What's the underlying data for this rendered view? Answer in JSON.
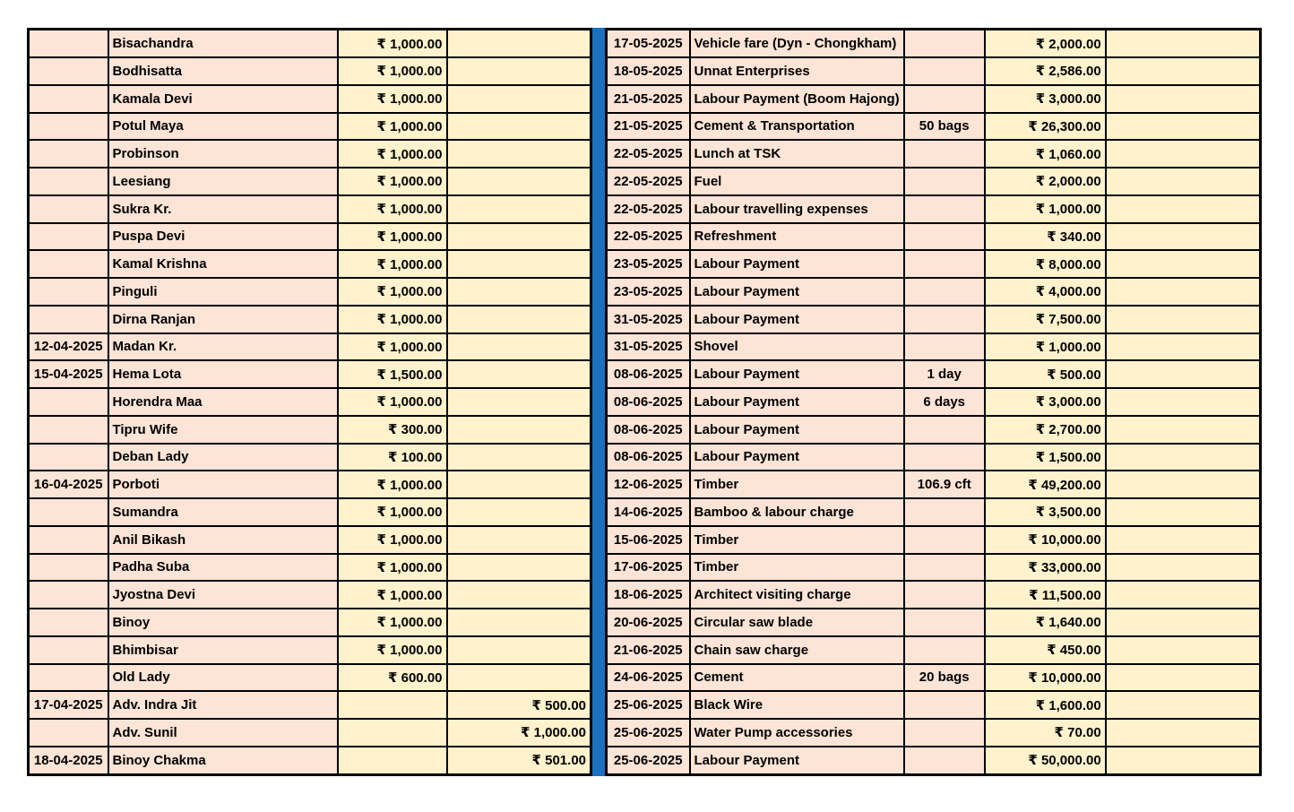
{
  "colors": {
    "row_pink": "#FCE4D6",
    "row_yellow": "#FFF2CC",
    "divider_blue": "#1B71BE",
    "grid_line": "#000000"
  },
  "currency_symbol": "₹",
  "left_table": {
    "columns": [
      "date",
      "name",
      "amount",
      "amount2"
    ],
    "rows": [
      {
        "date": "",
        "name": "Bisachandra",
        "amount": "₹ 1,000.00",
        "amount2": ""
      },
      {
        "date": "",
        "name": "Bodhisatta",
        "amount": "₹ 1,000.00",
        "amount2": ""
      },
      {
        "date": "",
        "name": "Kamala Devi",
        "amount": "₹ 1,000.00",
        "amount2": ""
      },
      {
        "date": "",
        "name": "Potul Maya",
        "amount": "₹ 1,000.00",
        "amount2": ""
      },
      {
        "date": "",
        "name": "Probinson",
        "amount": "₹ 1,000.00",
        "amount2": ""
      },
      {
        "date": "",
        "name": "Leesiang",
        "amount": "₹ 1,000.00",
        "amount2": ""
      },
      {
        "date": "",
        "name": "Sukra Kr.",
        "amount": "₹ 1,000.00",
        "amount2": ""
      },
      {
        "date": "",
        "name": "Puspa Devi",
        "amount": "₹ 1,000.00",
        "amount2": ""
      },
      {
        "date": "",
        "name": "Kamal Krishna",
        "amount": "₹ 1,000.00",
        "amount2": ""
      },
      {
        "date": "",
        "name": "Pinguli",
        "amount": "₹ 1,000.00",
        "amount2": ""
      },
      {
        "date": "",
        "name": "Dirna Ranjan",
        "amount": "₹ 1,000.00",
        "amount2": ""
      },
      {
        "date": "12-04-2025",
        "name": "Madan Kr.",
        "amount": "₹ 1,000.00",
        "amount2": ""
      },
      {
        "date": "15-04-2025",
        "name": "Hema Lota",
        "amount": "₹ 1,500.00",
        "amount2": ""
      },
      {
        "date": "",
        "name": "Horendra Maa",
        "amount": "₹ 1,000.00",
        "amount2": ""
      },
      {
        "date": "",
        "name": "Tipru Wife",
        "amount": "₹ 300.00",
        "amount2": ""
      },
      {
        "date": "",
        "name": "Deban Lady",
        "amount": "₹ 100.00",
        "amount2": ""
      },
      {
        "date": "16-04-2025",
        "name": "Porboti",
        "amount": "₹ 1,000.00",
        "amount2": ""
      },
      {
        "date": "",
        "name": "Sumandra",
        "amount": "₹ 1,000.00",
        "amount2": ""
      },
      {
        "date": "",
        "name": "Anil Bikash",
        "amount": "₹ 1,000.00",
        "amount2": ""
      },
      {
        "date": "",
        "name": "Padha Suba",
        "amount": "₹ 1,000.00",
        "amount2": ""
      },
      {
        "date": "",
        "name": "Jyostna Devi",
        "amount": "₹ 1,000.00",
        "amount2": ""
      },
      {
        "date": "",
        "name": "Binoy",
        "amount": "₹ 1,000.00",
        "amount2": ""
      },
      {
        "date": "",
        "name": "Bhimbisar",
        "amount": "₹ 1,000.00",
        "amount2": ""
      },
      {
        "date": "",
        "name": "Old Lady",
        "amount": "₹ 600.00",
        "amount2": ""
      },
      {
        "date": "17-04-2025",
        "name": "Adv. Indra Jit",
        "amount": "",
        "amount2": "₹ 500.00"
      },
      {
        "date": "",
        "name": "Adv. Sunil",
        "amount": "",
        "amount2": "₹ 1,000.00"
      },
      {
        "date": "18-04-2025",
        "name": "Binoy Chakma",
        "amount": "",
        "amount2": "₹ 501.00"
      }
    ]
  },
  "right_table": {
    "columns": [
      "date",
      "description",
      "qty",
      "amount",
      "extra"
    ],
    "rows": [
      {
        "date": "17-05-2025",
        "description": "Vehicle fare (Dyn - Chongkham)",
        "qty": "",
        "amount": "₹ 2,000.00",
        "extra": ""
      },
      {
        "date": "18-05-2025",
        "description": "Unnat Enterprises",
        "qty": "",
        "amount": "₹ 2,586.00",
        "extra": ""
      },
      {
        "date": "21-05-2025",
        "description": "Labour Payment (Boom Hajong)",
        "qty": "",
        "amount": "₹ 3,000.00",
        "extra": ""
      },
      {
        "date": "21-05-2025",
        "description": "Cement & Transportation",
        "qty": "50 bags",
        "amount": "₹ 26,300.00",
        "extra": ""
      },
      {
        "date": "22-05-2025",
        "description": "Lunch at TSK",
        "qty": "",
        "amount": "₹ 1,060.00",
        "extra": ""
      },
      {
        "date": "22-05-2025",
        "description": "Fuel",
        "qty": "",
        "amount": "₹ 2,000.00",
        "extra": ""
      },
      {
        "date": "22-05-2025",
        "description": "Labour travelling expenses",
        "qty": "",
        "amount": "₹ 1,000.00",
        "extra": ""
      },
      {
        "date": "22-05-2025",
        "description": "Refreshment",
        "qty": "",
        "amount": "₹ 340.00",
        "extra": ""
      },
      {
        "date": "23-05-2025",
        "description": "Labour Payment",
        "qty": "",
        "amount": "₹ 8,000.00",
        "extra": ""
      },
      {
        "date": "23-05-2025",
        "description": "Labour Payment",
        "qty": "",
        "amount": "₹ 4,000.00",
        "extra": ""
      },
      {
        "date": "31-05-2025",
        "description": "Labour Payment",
        "qty": "",
        "amount": "₹ 7,500.00",
        "extra": ""
      },
      {
        "date": "31-05-2025",
        "description": "Shovel",
        "qty": "",
        "amount": "₹ 1,000.00",
        "extra": ""
      },
      {
        "date": "08-06-2025",
        "description": "Labour Payment",
        "qty": "1 day",
        "amount": "₹ 500.00",
        "extra": ""
      },
      {
        "date": "08-06-2025",
        "description": "Labour Payment",
        "qty": "6 days",
        "amount": "₹ 3,000.00",
        "extra": ""
      },
      {
        "date": "08-06-2025",
        "description": "Labour Payment",
        "qty": "",
        "amount": "₹ 2,700.00",
        "extra": ""
      },
      {
        "date": "08-06-2025",
        "description": "Labour Payment",
        "qty": "",
        "amount": "₹ 1,500.00",
        "extra": ""
      },
      {
        "date": "12-06-2025",
        "description": "Timber",
        "qty": "106.9 cft",
        "amount": "₹ 49,200.00",
        "extra": ""
      },
      {
        "date": "14-06-2025",
        "description": "Bamboo & labour charge",
        "qty": "",
        "amount": "₹ 3,500.00",
        "extra": ""
      },
      {
        "date": "15-06-2025",
        "description": "Timber",
        "qty": "",
        "amount": "₹ 10,000.00",
        "extra": ""
      },
      {
        "date": "17-06-2025",
        "description": "Timber",
        "qty": "",
        "amount": "₹ 33,000.00",
        "extra": ""
      },
      {
        "date": "18-06-2025",
        "description": "Architect visiting charge",
        "qty": "",
        "amount": "₹ 11,500.00",
        "extra": ""
      },
      {
        "date": "20-06-2025",
        "description": "Circular saw blade",
        "qty": "",
        "amount": "₹ 1,640.00",
        "extra": ""
      },
      {
        "date": "21-06-2025",
        "description": "Chain saw charge",
        "qty": "",
        "amount": "₹ 450.00",
        "extra": ""
      },
      {
        "date": "24-06-2025",
        "description": "Cement",
        "qty": "20 bags",
        "amount": "₹ 10,000.00",
        "extra": ""
      },
      {
        "date": "25-06-2025",
        "description": "Black Wire",
        "qty": "",
        "amount": "₹ 1,600.00",
        "extra": ""
      },
      {
        "date": "25-06-2025",
        "description": "Water Pump accessories",
        "qty": "",
        "amount": "₹ 70.00",
        "extra": ""
      },
      {
        "date": "25-06-2025",
        "description": "Labour Payment",
        "qty": "",
        "amount": "₹ 50,000.00",
        "extra": ""
      }
    ]
  }
}
